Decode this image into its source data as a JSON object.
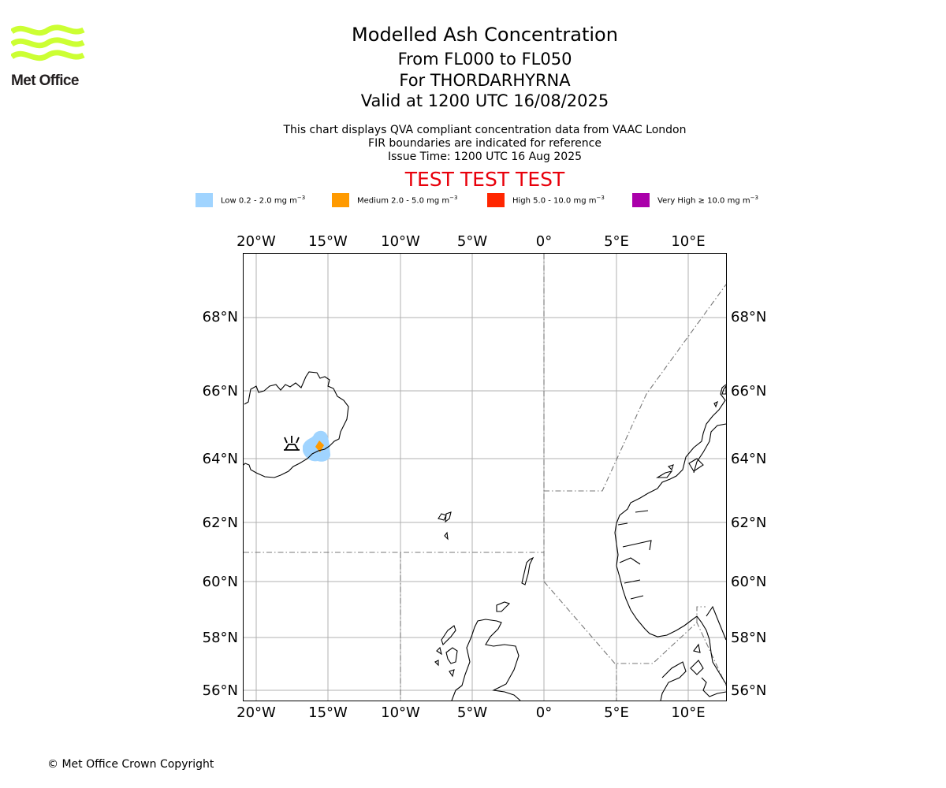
{
  "header": {
    "title": "Modelled Ash Concentration",
    "flight_levels": "From FL000 to FL050",
    "volcano": "For THORDARHYRNA",
    "valid_time": "Valid at 1200 UTC 16/08/2025",
    "note_1": "This chart displays QVA compliant concentration data from VAAC London",
    "note_2": "FIR boundaries are indicated for reference",
    "issue_time": "Issue Time: 1200 UTC 16 Aug 2025",
    "banner": "TEST TEST TEST"
  },
  "logo": {
    "text": "Met Office",
    "color": "#ccff33"
  },
  "legend": [
    {
      "label": "Low 0.2 - 2.0 mg m",
      "color": "#a0d4ff"
    },
    {
      "label": "Medium 2.0 - 5.0 mg m",
      "color": "#ff9a00"
    },
    {
      "label": "High 5.0 - 10.0 mg m",
      "color": "#ff2600"
    },
    {
      "label": "Very High ≥ 10.0 mg m",
      "color": "#aa00aa"
    }
  ],
  "legend_unit_exponent": "−3",
  "map": {
    "lon_ticks": [
      "20°W",
      "15°W",
      "10°W",
      "5°W",
      "0°",
      "5°E",
      "10°E"
    ],
    "lat_ticks": [
      "68°N",
      "66°N",
      "64°N",
      "62°N",
      "60°N",
      "58°N",
      "56°N"
    ],
    "volcano_marker": "volcano-symbol"
  },
  "footer": {
    "copyright": "© Met Office Crown Copyright"
  }
}
